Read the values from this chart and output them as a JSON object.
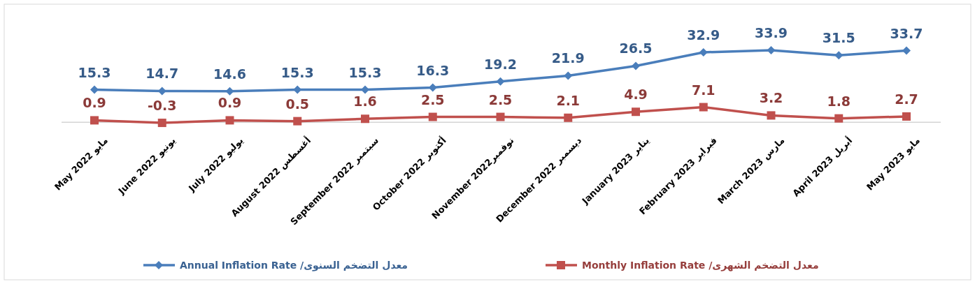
{
  "chart_data": {
    "type": "line",
    "categories": [
      "May 2022 مايو",
      "June 2022 يونيو",
      "July 2022 يوليو",
      "August 2022 أغسطس",
      "September 2022 سبتمبر",
      "October  2022 أكتوبر",
      "November 2022نوفمبر",
      "December 2022 ديسمبر",
      "January 2023 يناير",
      "February  2023 فبراير",
      "March 2023 مارس",
      "April 2023 أبريل",
      "May 2023 مايو"
    ],
    "series": [
      {
        "name": "معدل التضخم السنوى/ Annual Inflation Rate",
        "color": "#4a7ebb",
        "marker": "diamond",
        "values": [
          15.3,
          14.7,
          14.6,
          15.3,
          15.3,
          16.3,
          19.2,
          21.9,
          26.5,
          32.9,
          33.9,
          31.5,
          33.7
        ]
      },
      {
        "name": "معدل التضخم الشهرى/ Monthly Inflation Rate",
        "color": "#c0504d",
        "marker": "square",
        "values": [
          0.9,
          -0.3,
          0.9,
          0.5,
          1.6,
          2.5,
          2.5,
          2.1,
          4.9,
          7.1,
          3.2,
          1.8,
          2.7
        ]
      }
    ],
    "data_labels": true,
    "legend": "bottom"
  }
}
